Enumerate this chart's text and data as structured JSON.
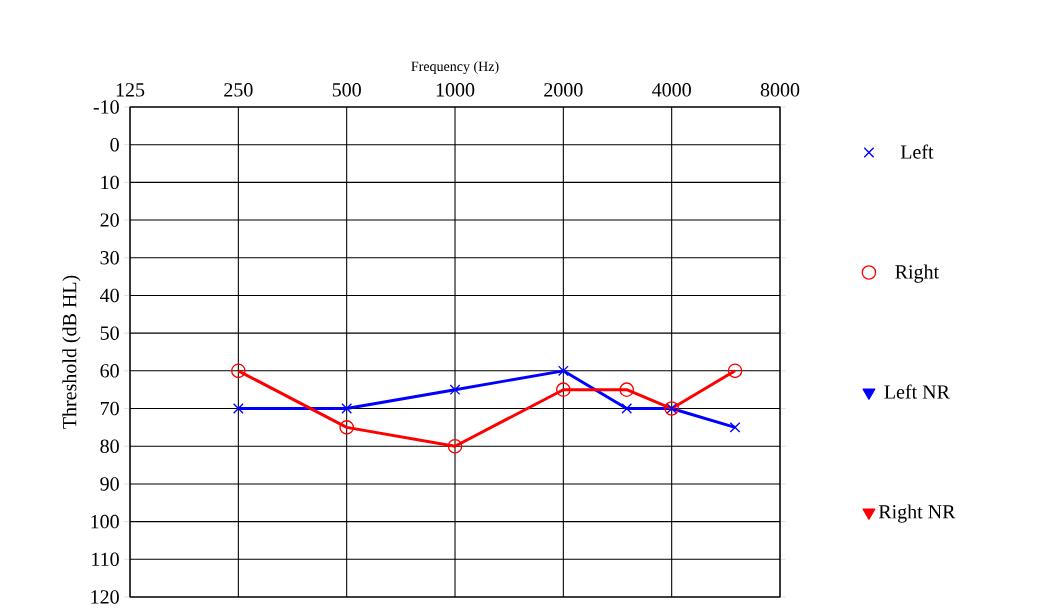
{
  "chart_data": {
    "type": "line",
    "xlabel": "Frequency (Hz)",
    "ylabel": "Threshold (dB HL)",
    "log": "x",
    "grid": true,
    "legend": "right",
    "line_style": "solid",
    "xlim": [
      125,
      8000
    ],
    "xticks": [
      125,
      250,
      500,
      1000,
      2000,
      4000,
      8000
    ],
    "ylim": [
      120,
      -10
    ],
    "yticks": [
      -10,
      0,
      10,
      20,
      30,
      40,
      50,
      60,
      70,
      80,
      90,
      100,
      110,
      120
    ],
    "x": [
      250,
      500,
      1000,
      2000,
      3000,
      4000,
      6000
    ],
    "series": [
      {
        "name": "Left",
        "color": "#0000ff",
        "marker": "cross",
        "values": [
          70,
          70,
          65,
          60,
          70,
          70,
          75
        ]
      },
      {
        "name": "Right",
        "color": "#ff0000",
        "marker": "circle",
        "values": [
          60,
          75,
          80,
          65,
          65,
          70,
          60
        ]
      },
      {
        "name": "Left NR",
        "color": "#0000ff",
        "marker": "triangle",
        "values": [
          null,
          null,
          null,
          null,
          null,
          null,
          null
        ]
      },
      {
        "name": "Right NR",
        "color": "#ff0000",
        "marker": "triangle",
        "values": [
          null,
          null,
          null,
          null,
          null,
          null,
          null
        ]
      }
    ]
  }
}
